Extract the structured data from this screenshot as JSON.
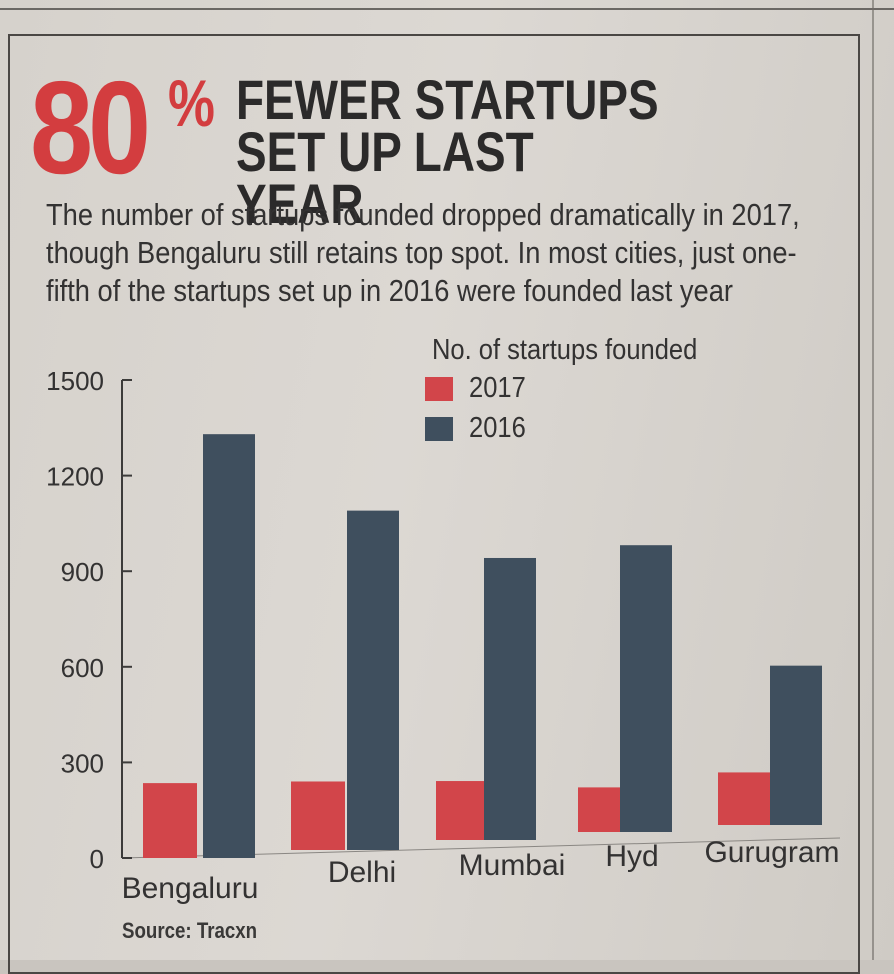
{
  "headline": {
    "number": "80",
    "percent": "%",
    "text": "FEWER STARTUPS\nSET UP LAST YEAR"
  },
  "deck": "The number of startups founded dropped dramatically in 2017, though Bengaluru still retains top spot. In most cities, just one-fifth of the startups set up in 2016 were founded last year",
  "source": "Source: Tracxn",
  "chart_data": {
    "type": "bar",
    "title": "No. of startups founded",
    "categories": [
      "Bengaluru",
      "Delhi",
      "Mumbai",
      "Hyd",
      "Gurugram"
    ],
    "series": [
      {
        "name": "2017",
        "values": [
          235,
          215,
          185,
          140,
          165
        ],
        "color": "#d2454a"
      },
      {
        "name": "2016",
        "values": [
          1330,
          1065,
          885,
          900,
          500
        ],
        "color": "#3f4f5e"
      }
    ],
    "yticks": [
      0,
      300,
      600,
      900,
      1200,
      1500
    ],
    "ylim": [
      0,
      1500
    ],
    "legend_position": "top-center",
    "grid": false
  }
}
